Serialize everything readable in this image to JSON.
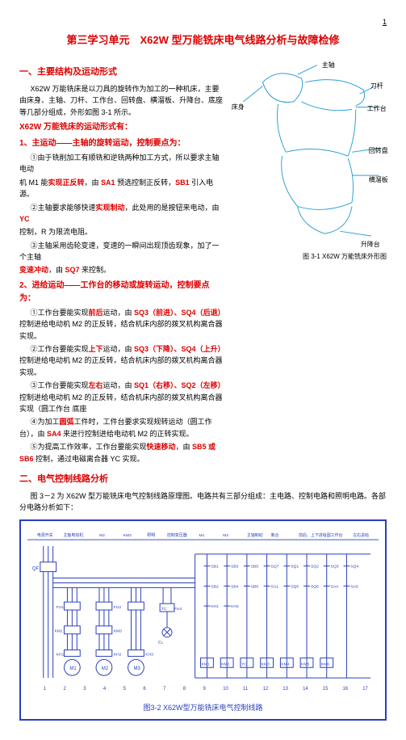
{
  "page_number": "1",
  "title": "第三学习单元　X62W 型万能铣床电气线路分析与故障检修",
  "section1": {
    "heading": "一、主要结构及运动形式",
    "intro": "X62W 万能铣床是以刀具的旋转作为加工的一种机床，主要由床身、主轴、刀杆、工作台、回转盘、横溜板、升降台、底座等几部分组成，外形如图 3-1 所示。",
    "sub_heading": "X62W 万能铣床的运动形式有：",
    "item1": {
      "label": "1、主运动——主轴的旋转运动，控制要点为：",
      "p1_pre": "①由于铣削加工有顺铣和逆铣两种加工方式，所以要求主轴电动",
      "p1_suf": "机 M1 能",
      "p1_red1": "实现正反转",
      "p1_mid": "，由 ",
      "p1_red2": "SA1",
      "p1_mid2": " 预选控制正反转，",
      "p1_red3": "SB1",
      "p1_end": " 引入电源。",
      "p2_pre": "②主轴要求能够快速",
      "p2_red1": "实现制动",
      "p2_mid": "，此处用的是按钮来电动，由 ",
      "p2_red2": "YC",
      "p2_end": "控制，R 为限流电阻。",
      "p3_pre": "③主轴采用齿轮变速，变速的一瞬间出现顶齿现象，加了一个主轴",
      "p3_red": "变速冲动",
      "p3_mid": "，由 ",
      "p3_red2": "SQ7",
      "p3_end": " 来控制。"
    },
    "item2": {
      "label": "2、进给运动——工作台的移动或旋转运动，控制要点为：",
      "p1_pre": "①工作台要能实现",
      "p1_red1": "前后",
      "p1_mid1": "运动，由 ",
      "p1_red2": "SQ3（前进）、SQ4（后退）",
      "p1_end": "控制进给电动机 M2 的正反转，结合机床内部的拨叉机构离合器实现。",
      "p2_pre": "②工作台要能实现",
      "p2_red1": "上下",
      "p2_mid1": "运动，由 ",
      "p2_red2": "SQ3（下降）、SQ4（上升）",
      "p2_end": "控制进给电动机 M2 的正反转，结合机床内部的拨叉机构离合器实现。",
      "p3_pre": "③工作台要能实现",
      "p3_red1": "左右",
      "p3_mid1": "运动，由 ",
      "p3_red2": "SQ1（右移）、SQ2（左移）",
      "p3_end": "控制进给电动机 M2 的正反转，结合机床内部的拨叉机构离合器实现（圆工作台 底座",
      "p4_pre": "④为加工",
      "p4_red1": "圆弧",
      "p4_mid1": "工件时，工件台要求实现规转运动（圆工作台），由 ",
      "p4_red2": "SA4",
      "p4_end": " 来进行控制进给电动机 M2 的正转实现。",
      "p5_pre": "⑤为提高工作效率，工作台要能实现",
      "p5_red1": "快速移动",
      "p5_mid1": "，由 ",
      "p5_red2": "SB5 或 SB6",
      "p5_end": " 控制，通过电磁离合器 YC 实现。"
    }
  },
  "section2": {
    "heading": "二、电气控制线路分析",
    "intro": "图 3－2 为 X62W 型万能铣床电气控制线路原理图。电路共有三部分组成：主电路、控制电路和照明电路。各部分电路分析如下："
  },
  "sketch": {
    "labels": {
      "zhuzhou": "主轴",
      "chuangsheng": "床身",
      "daogui": "刀杆",
      "gongzuotai": "工作台",
      "huizhuanpan": "回转盘",
      "hengliuban": "横溜板",
      "shengjiantai": "升降台"
    },
    "caption": "图 3-1  X62W 万能铣床外形图",
    "line_color": "#2a9fd6",
    "line_width": 1
  },
  "circuit": {
    "border_color": "#2a3fba",
    "wire_color": "#2a3fba",
    "wire_width": 1,
    "background": "#ffffff",
    "top_labels": [
      "电源开关",
      "主轴电动机",
      "M2",
      "KM3",
      "照明",
      "控制变压器",
      "M1",
      "M2",
      "主轴制动",
      "离合",
      "前后、上下进给",
      "圆工作台",
      "左右进给"
    ],
    "terminals": [
      "1",
      "2",
      "3",
      "4",
      "5",
      "6",
      "7",
      "8",
      "9",
      "10",
      "11",
      "12",
      "13",
      "14",
      "15",
      "16",
      "17"
    ],
    "components": {
      "qf": "QF",
      "fu": [
        "FU1",
        "FU2",
        "FU3",
        "FU4"
      ],
      "km": [
        "KM1",
        "KM2",
        "KM3",
        "KM4",
        "KM5",
        "KM6"
      ],
      "kh": [
        "KH1",
        "KH2",
        "KH3"
      ],
      "m": [
        "M1",
        "M2",
        "M3"
      ],
      "sa": [
        "SA1",
        "SA4",
        "SA5"
      ],
      "sb": [
        "SB1",
        "SB2",
        "SB3",
        "SB4",
        "SB5",
        "SB6"
      ],
      "sq": [
        "SQ1",
        "SQ2",
        "SQ3",
        "SQ4",
        "SQ5",
        "SQ6",
        "SQ7"
      ],
      "tc": "TC",
      "el": "EL",
      "yc": "YC"
    },
    "caption": "图3-2  X62W型万能铣床电气控制线路"
  }
}
